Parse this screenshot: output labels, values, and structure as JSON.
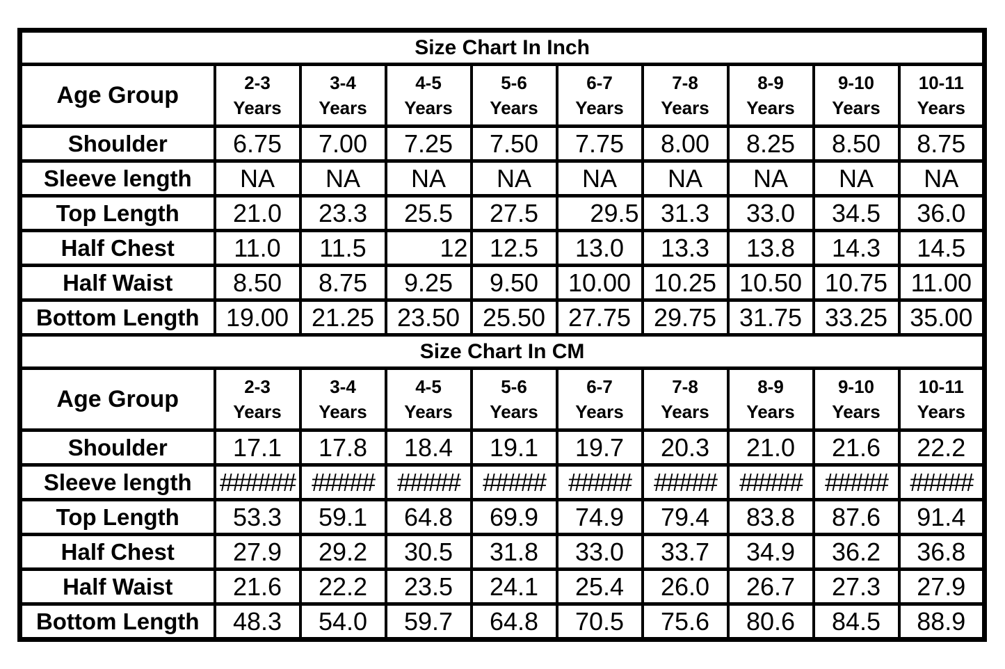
{
  "colors": {
    "background": "#ffffff",
    "grid_lines": "#000000",
    "text": "#000000"
  },
  "chart_data": [
    {
      "type": "table",
      "title": "Size Chart In Inch",
      "corner_label": "Age Group",
      "years_word": "Years",
      "columns": [
        "2-3",
        "3-4",
        "4-5",
        "5-6",
        "6-7",
        "7-8",
        "8-9",
        "9-10",
        "10-11"
      ],
      "rows": [
        {
          "label": "Shoulder",
          "values": [
            "6.75",
            "7.00",
            "7.25",
            "7.50",
            "7.75",
            "8.00",
            "8.25",
            "8.50",
            "8.75"
          ],
          "right_aligned_indices": []
        },
        {
          "label": "Sleeve length",
          "values": [
            "NA",
            "NA",
            "NA",
            "NA",
            "NA",
            "NA",
            "NA",
            "NA",
            "NA"
          ],
          "right_aligned_indices": []
        },
        {
          "label": "Top Length",
          "values": [
            "21.0",
            "23.3",
            "25.5",
            "27.5",
            "29.5",
            "31.3",
            "33.0",
            "34.5",
            "36.0"
          ],
          "right_aligned_indices": [
            4
          ]
        },
        {
          "label": "Half Chest",
          "values": [
            "11.0",
            "11.5",
            "12",
            "12.5",
            "13.0",
            "13.3",
            "13.8",
            "14.3",
            "14.5"
          ],
          "right_aligned_indices": [
            2
          ]
        },
        {
          "label": "Half Waist",
          "values": [
            "8.50",
            "8.75",
            "9.25",
            "9.50",
            "10.00",
            "10.25",
            "10.50",
            "10.75",
            "11.00"
          ],
          "right_aligned_indices": []
        },
        {
          "label": "Bottom Length",
          "values": [
            "19.00",
            "21.25",
            "23.50",
            "25.50",
            "27.75",
            "29.75",
            "31.75",
            "33.25",
            "35.00"
          ],
          "right_aligned_indices": []
        }
      ]
    },
    {
      "type": "table",
      "title": "Size Chart In CM",
      "corner_label": "Age Group",
      "years_word": "Years",
      "columns": [
        "2-3",
        "3-4",
        "4-5",
        "5-6",
        "6-7",
        "7-8",
        "8-9",
        "9-10",
        "10-11"
      ],
      "rows": [
        {
          "label": "Shoulder",
          "values": [
            "17.1",
            "17.8",
            "18.4",
            "19.1",
            "19.7",
            "20.3",
            "21.0",
            "21.6",
            "22.2"
          ],
          "right_aligned_indices": []
        },
        {
          "label": "Sleeve length",
          "values": [
            "######",
            "#####",
            "#####",
            "#####",
            "#####",
            "#####",
            "#####",
            "#####",
            "#####"
          ],
          "right_aligned_indices": []
        },
        {
          "label": "Top Length",
          "values": [
            "53.3",
            "59.1",
            "64.8",
            "69.9",
            "74.9",
            "79.4",
            "83.8",
            "87.6",
            "91.4"
          ],
          "right_aligned_indices": []
        },
        {
          "label": "Half Chest",
          "values": [
            "27.9",
            "29.2",
            "30.5",
            "31.8",
            "33.0",
            "33.7",
            "34.9",
            "36.2",
            "36.8"
          ],
          "right_aligned_indices": []
        },
        {
          "label": "Half Waist",
          "values": [
            "21.6",
            "22.2",
            "23.5",
            "24.1",
            "25.4",
            "26.0",
            "26.7",
            "27.3",
            "27.9"
          ],
          "right_aligned_indices": []
        },
        {
          "label": "Bottom Length",
          "values": [
            "48.3",
            "54.0",
            "59.7",
            "64.8",
            "70.5",
            "75.6",
            "80.6",
            "84.5",
            "88.9"
          ],
          "right_aligned_indices": []
        }
      ]
    }
  ]
}
